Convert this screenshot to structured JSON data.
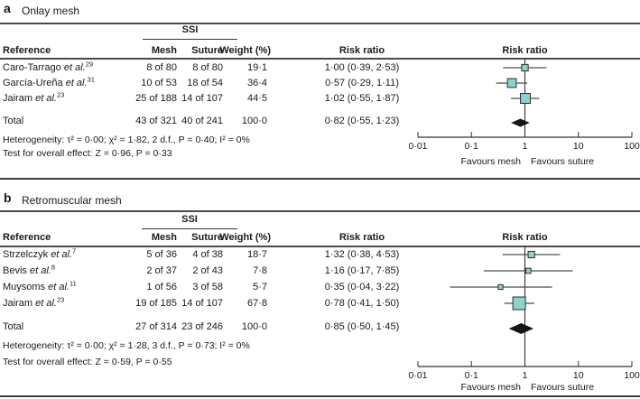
{
  "figure": {
    "columns": {
      "reference": "Reference",
      "ssi": "SSI",
      "mesh": "Mesh",
      "suture": "Suture",
      "weight": "Weight (%)",
      "risk_ratio": "Risk ratio",
      "plot_header": "Risk ratio"
    },
    "axis": {
      "scale": "log",
      "tick_labels": [
        "0·01",
        "0·1",
        "1",
        "10",
        "100"
      ],
      "tick_values": [
        0.01,
        0.1,
        1,
        10,
        100
      ],
      "favours_left": "Favours mesh",
      "favours_right": "Favours suture"
    },
    "colors": {
      "square_fill": "#8ed2ca",
      "square_border": "#2f2f2f",
      "ci_line": "#4d4d4d",
      "diamond": "#161616",
      "axis": "#333333",
      "null_line": "#333333"
    }
  },
  "chart_data": [
    {
      "type": "forest",
      "panel_letter": "a",
      "title": "Onlay mesh",
      "studies": [
        {
          "author": "Caro-Tarrago",
          "etal": "et al.",
          "cite": "29",
          "mesh": "8 of 80",
          "suture": "8 of 80",
          "weight": "19·1",
          "rr": 1.0,
          "ci_low": 0.39,
          "ci_high": 2.53,
          "rr_text": "1·00 (0·39, 2·53)"
        },
        {
          "author": "García-Ureña",
          "etal": "et al.",
          "cite": "31",
          "mesh": "10 of 53",
          "suture": "18 of 54",
          "weight": "36·4",
          "rr": 0.57,
          "ci_low": 0.29,
          "ci_high": 1.11,
          "rr_text": "0·57 (0·29, 1·11)"
        },
        {
          "author": "Jairam",
          "etal": "et al.",
          "cite": "23",
          "mesh": "25 of 188",
          "suture": "14 of 107",
          "weight": "44·5",
          "rr": 1.02,
          "ci_low": 0.55,
          "ci_high": 1.87,
          "rr_text": "1·02 (0·55, 1·87)"
        }
      ],
      "total": {
        "label": "Total",
        "mesh": "43 of 321",
        "suture": "40 of 241",
        "weight": "100·0",
        "rr": 0.82,
        "ci_low": 0.55,
        "ci_high": 1.23,
        "rr_text": "0·82 (0·55, 1·23)"
      },
      "heterogeneity": "Heterogeneity: τ² = 0·00; χ² = 1·82, 2 d.f., P = 0·40; I² = 0%",
      "overall_effect": "Test for overall effect: Z = 0·96, P = 0·33"
    },
    {
      "type": "forest",
      "panel_letter": "b",
      "title": "Retromuscular mesh",
      "studies": [
        {
          "author": "Strzelczyk",
          "etal": "et al.",
          "cite": "7",
          "mesh": "5 of 36",
          "suture": "4 of 38",
          "weight": "18·7",
          "rr": 1.32,
          "ci_low": 0.38,
          "ci_high": 4.53,
          "rr_text": "1·32 (0·38, 4·53)"
        },
        {
          "author": "Bevis",
          "etal": "et al.",
          "cite": "8",
          "mesh": "2 of 37",
          "suture": "2 of 43",
          "weight": "7·8",
          "rr": 1.16,
          "ci_low": 0.17,
          "ci_high": 7.85,
          "rr_text": "1·16 (0·17, 7·85)"
        },
        {
          "author": "Muysoms",
          "etal": "et al.",
          "cite": "11",
          "mesh": "1 of 56",
          "suture": "3 of 58",
          "weight": "5·7",
          "rr": 0.35,
          "ci_low": 0.04,
          "ci_high": 3.22,
          "rr_text": "0·35 (0·04, 3·22)"
        },
        {
          "author": "Jairam",
          "etal": "et al.",
          "cite": "23",
          "mesh": "19 of 185",
          "suture": "14 of 107",
          "weight": "67·8",
          "rr": 0.78,
          "ci_low": 0.41,
          "ci_high": 1.5,
          "rr_text": "0·78 (0·41, 1·50)"
        }
      ],
      "total": {
        "label": "Total",
        "mesh": "27 of 314",
        "suture": "23 of 246",
        "weight": "100·0",
        "rr": 0.85,
        "ci_low": 0.5,
        "ci_high": 1.45,
        "rr_text": "0·85 (0·50, 1·45)"
      },
      "heterogeneity": "Heterogeneity: τ² = 0·00; χ² = 1·28, 3 d.f., P = 0·73; I² = 0%",
      "overall_effect": "Test for overall effect: Z = 0·59, P = 0·55"
    }
  ]
}
